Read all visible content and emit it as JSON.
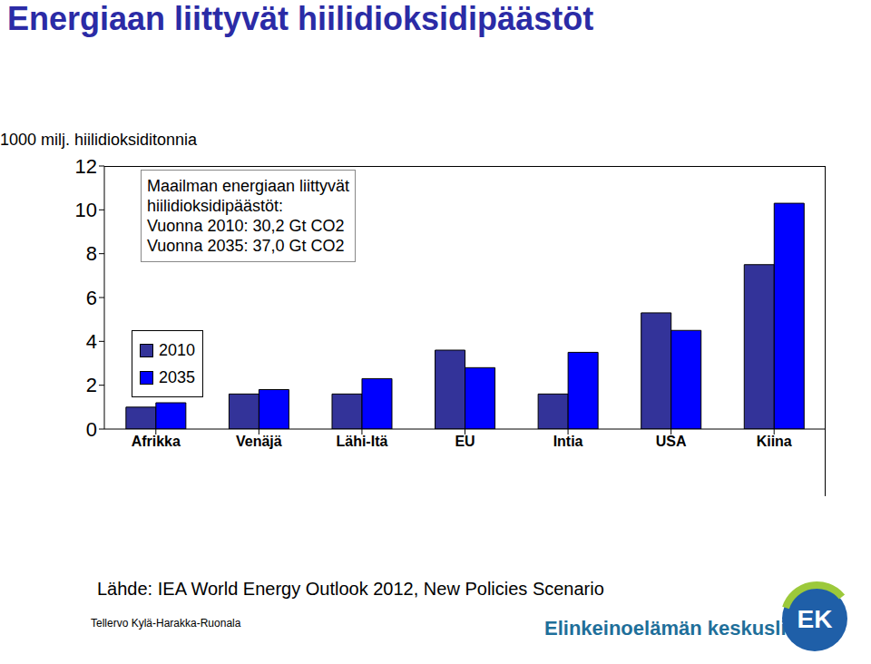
{
  "chart_data": {
    "type": "bar",
    "title": "Energiaan liittyvät hiilidioksidipäästöt",
    "y_label": "1000 milj. hiilidioksiditonnia",
    "categories": [
      "Afrikka",
      "Venäjä",
      "Lähi-Itä",
      "EU",
      "Intia",
      "USA",
      "Kiina"
    ],
    "series": [
      {
        "name": "2010",
        "color": "#333399",
        "values": [
          1.0,
          1.6,
          1.6,
          3.6,
          1.6,
          5.3,
          7.5
        ]
      },
      {
        "name": "2035",
        "color": "#0000ff",
        "values": [
          1.2,
          1.8,
          2.3,
          2.8,
          3.5,
          4.5,
          10.3
        ]
      }
    ],
    "ylim": [
      0,
      12
    ],
    "yticks": [
      0,
      2,
      4,
      6,
      8,
      10,
      12
    ],
    "grid": false,
    "legend": "top-left",
    "annotation": [
      "Maailman energiaan liittyvät",
      "hiilidioksidipäästöt:",
      "Vuonna 2010: 30,2 Gt CO2",
      "Vuonna 2035: 37,0 Gt CO2"
    ],
    "source": "Lähde: IEA World Energy Outlook 2012, New Policies Scenario",
    "author": "Tellervo Kylä-Harakka-Ruonala",
    "logo_text": "Elinkeinoelämän keskusliitto",
    "logo_mark": "EK"
  }
}
